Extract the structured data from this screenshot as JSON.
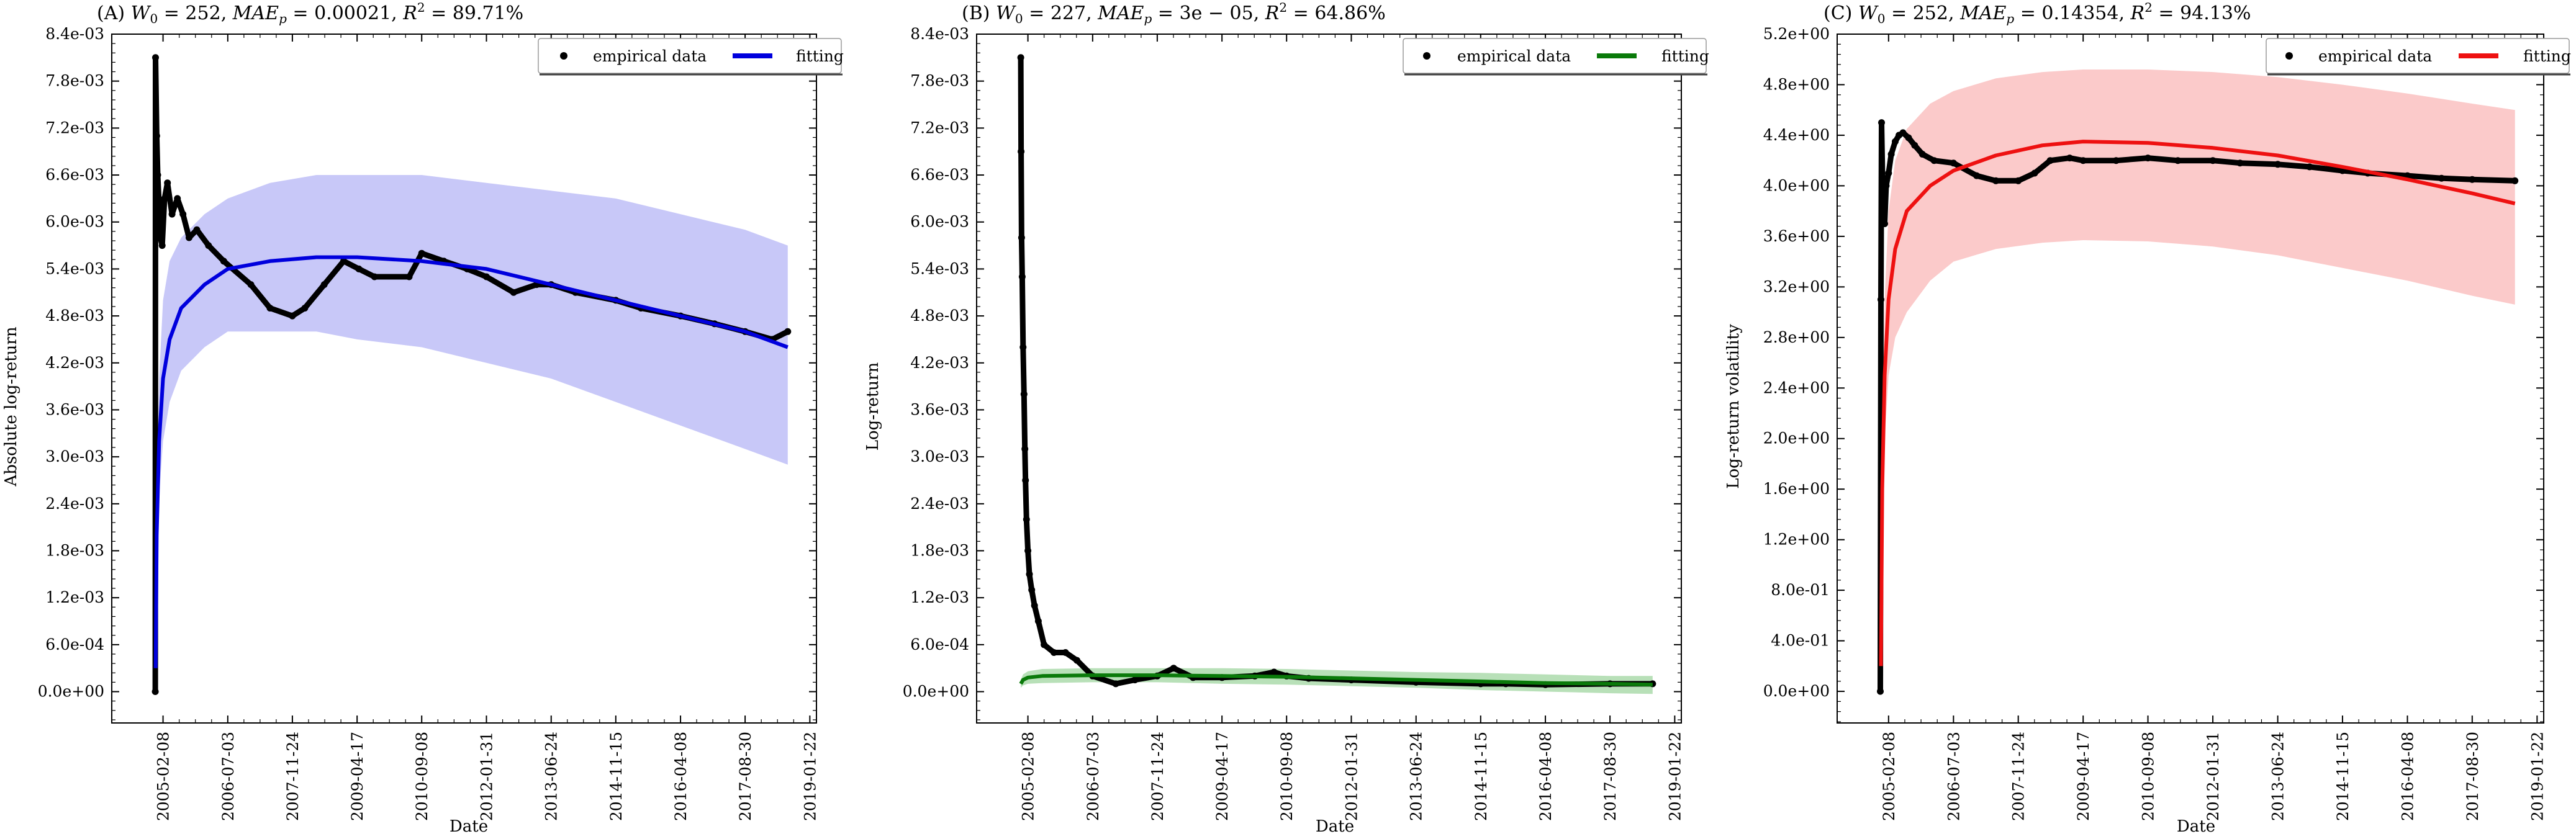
{
  "chart_data": [
    {
      "panel_label": "(A)",
      "title_parts": {
        "w0": "252",
        "mae": "0.00021",
        "r2": "89.71%"
      },
      "type": "scatter",
      "xlabel": "Date",
      "ylabel": "Absolute log-return",
      "x_tick_labels": [
        "2005-02-08",
        "2006-07-03",
        "2007-11-24",
        "2009-04-17",
        "2010-09-08",
        "2012-01-31",
        "2013-06-24",
        "2014-11-15",
        "2016-04-08",
        "2017-08-30",
        "2019-01-22"
      ],
      "xlim": [
        "2004-01-01",
        "2019-03-15"
      ],
      "ylim": [
        -0.0004,
        0.0084
      ],
      "y_ticks": [
        0,
        0.0006,
        0.0012,
        0.0018,
        0.0024,
        0.003,
        0.0036,
        0.0042,
        0.0048,
        0.0054,
        0.006,
        0.0066,
        0.0072,
        0.0078,
        0.0084
      ],
      "y_tick_labels": [
        "0.0e+00",
        "6.0e-04",
        "1.2e-03",
        "1.8e-03",
        "2.4e-03",
        "3.0e-03",
        "3.6e-03",
        "4.2e-03",
        "4.8e-03",
        "5.4e-03",
        "6.0e-03",
        "6.6e-03",
        "7.2e-03",
        "7.8e-03",
        "8.4e-03"
      ],
      "fit_color": "#0000dd",
      "band_color": "#c8c8f8",
      "legend": {
        "position": "top-right",
        "empirical_label": "empirical data",
        "fit_label": "fitting"
      },
      "empirical_series": {
        "x": [
          "2004-12-09",
          "2004-12-11",
          "2004-12-20",
          "2004-12-28",
          "2005-01-08",
          "2005-01-18",
          "2005-02-01",
          "2005-02-20",
          "2005-03-15",
          "2005-04-20",
          "2005-06-01",
          "2005-07-15",
          "2005-09-01",
          "2005-11-01",
          "2006-02-01",
          "2006-06-01",
          "2007-01-01",
          "2007-06-01",
          "2007-11-24",
          "2008-03-01",
          "2008-08-01",
          "2009-01-01",
          "2009-05-01",
          "2009-09-01",
          "2010-06-01",
          "2010-09-08",
          "2011-03-01",
          "2011-09-01",
          "2012-01-31",
          "2012-09-01",
          "2013-03-01",
          "2013-06-24",
          "2014-01-01",
          "2014-11-15",
          "2015-06-01",
          "2016-04-08",
          "2017-01-01",
          "2017-08-30",
          "2018-04-01",
          "2018-08-01"
        ],
        "y": [
          0.0,
          0.0081,
          0.0071,
          0.0066,
          0.0062,
          0.0058,
          0.0057,
          0.0063,
          0.0065,
          0.0061,
          0.0063,
          0.0061,
          0.0058,
          0.0059,
          0.0057,
          0.0055,
          0.0052,
          0.0049,
          0.0048,
          0.0049,
          0.0052,
          0.0055,
          0.0054,
          0.0053,
          0.0053,
          0.0056,
          0.0055,
          0.0054,
          0.0053,
          0.0051,
          0.0052,
          0.0052,
          0.0051,
          0.005,
          0.0049,
          0.0048,
          0.0047,
          0.0046,
          0.0045,
          0.0046
        ]
      },
      "fit_series": {
        "x": [
          "2004-12-12",
          "2004-12-20",
          "2005-01-08",
          "2005-02-08",
          "2005-04-01",
          "2005-07-01",
          "2006-01-01",
          "2006-07-03",
          "2007-06-01",
          "2008-06-01",
          "2009-04-17",
          "2010-09-08",
          "2012-01-31",
          "2013-06-24",
          "2014-11-15",
          "2016-04-08",
          "2017-08-30",
          "2018-08-01"
        ],
        "y": [
          0.0003,
          0.002,
          0.0032,
          0.004,
          0.0045,
          0.0049,
          0.0052,
          0.0054,
          0.0055,
          0.00555,
          0.00555,
          0.0055,
          0.0054,
          0.0052,
          0.005,
          0.0048,
          0.0046,
          0.0044
        ]
      },
      "band_upper": [
        0.0004,
        0.0026,
        0.004,
        0.005,
        0.0055,
        0.0058,
        0.0061,
        0.0063,
        0.0065,
        0.0066,
        0.0066,
        0.0066,
        0.0065,
        0.0064,
        0.0063,
        0.0061,
        0.0059,
        0.0057
      ],
      "band_lower": [
        0.0002,
        0.0016,
        0.0025,
        0.0032,
        0.0037,
        0.0041,
        0.0044,
        0.0046,
        0.0046,
        0.0046,
        0.0045,
        0.0044,
        0.0042,
        0.004,
        0.0037,
        0.0034,
        0.0031,
        0.0029
      ]
    },
    {
      "panel_label": "(B)",
      "title_parts": {
        "w0": "227",
        "mae": "3e − 05",
        "r2": "64.86%"
      },
      "type": "scatter",
      "xlabel": "Date",
      "ylabel": "Log-return",
      "x_tick_labels": [
        "2005-02-08",
        "2006-07-03",
        "2007-11-24",
        "2009-04-17",
        "2010-09-08",
        "2012-01-31",
        "2013-06-24",
        "2014-11-15",
        "2016-04-08",
        "2017-08-30",
        "2019-01-22"
      ],
      "xlim": [
        "2004-01-01",
        "2019-03-15"
      ],
      "ylim": [
        -0.0004,
        0.0084
      ],
      "y_ticks": [
        0,
        0.0006,
        0.0012,
        0.0018,
        0.0024,
        0.003,
        0.0036,
        0.0042,
        0.0048,
        0.0054,
        0.006,
        0.0066,
        0.0072,
        0.0078,
        0.0084
      ],
      "y_tick_labels": [
        "0.0e+00",
        "6.0e-04",
        "1.2e-03",
        "1.8e-03",
        "2.4e-03",
        "3.0e-03",
        "3.6e-03",
        "4.2e-03",
        "4.8e-03",
        "5.4e-03",
        "6.0e-03",
        "6.6e-03",
        "7.2e-03",
        "7.8e-03",
        "8.4e-03"
      ],
      "fit_color": "#0a7a0a",
      "band_color": "#b8e0b8",
      "legend": {
        "position": "top-right",
        "empirical_label": "empirical data",
        "fit_label": "fitting"
      },
      "empirical_series": {
        "x": [
          "2004-12-14",
          "2004-12-16",
          "2004-12-20",
          "2004-12-25",
          "2005-01-01",
          "2005-01-08",
          "2005-01-15",
          "2005-01-20",
          "2005-01-28",
          "2005-02-08",
          "2005-02-20",
          "2005-03-10",
          "2005-04-01",
          "2005-05-01",
          "2005-06-15",
          "2005-09-01",
          "2005-12-01",
          "2006-03-01",
          "2006-07-03",
          "2007-01-01",
          "2007-06-01",
          "2007-11-24",
          "2008-04-01",
          "2008-09-01",
          "2009-04-17",
          "2010-01-01",
          "2010-06-01",
          "2010-09-08",
          "2011-03-01",
          "2012-01-31",
          "2013-06-24",
          "2014-11-15",
          "2015-06-01",
          "2016-04-08",
          "2017-08-30",
          "2018-08-01"
        ],
        "y": [
          0.0081,
          0.0069,
          0.0058,
          0.0053,
          0.0044,
          0.0038,
          0.0031,
          0.0027,
          0.0022,
          0.0018,
          0.0015,
          0.0013,
          0.0011,
          0.0009,
          0.0006,
          0.0005,
          0.0005,
          0.0004,
          0.0002,
          0.0001,
          0.00015,
          0.0002,
          0.0003,
          0.00018,
          0.00018,
          0.0002,
          0.00025,
          0.0002,
          0.00017,
          0.00015,
          0.00012,
          0.0001,
          0.0001,
          9e-05,
          0.0001,
          0.0001
        ]
      },
      "fit_series": {
        "x": [
          "2004-12-14",
          "2005-01-01",
          "2005-02-08",
          "2005-06-01",
          "2006-07-03",
          "2007-11-24",
          "2009-04-17",
          "2010-09-08",
          "2012-01-31",
          "2013-06-24",
          "2014-11-15",
          "2016-04-08",
          "2017-08-30",
          "2018-08-01"
        ],
        "y": [
          0.0001,
          0.00015,
          0.00018,
          0.0002,
          0.00021,
          0.00021,
          0.0002,
          0.00019,
          0.00017,
          0.00015,
          0.00013,
          0.00011,
          0.0001,
          9e-05
        ]
      },
      "band_upper": [
        0.00015,
        0.00022,
        0.00026,
        0.00029,
        0.0003,
        0.0003,
        0.0003,
        0.00029,
        0.00027,
        0.00025,
        0.00024,
        0.00022,
        0.0002,
        0.0002
      ],
      "band_lower": [
        5e-05,
        8e-05,
        0.0001,
        0.00011,
        0.00012,
        0.00012,
        0.0001,
        9e-05,
        7e-05,
        5e-05,
        2e-05,
        0.0,
        -2e-05,
        -3e-05
      ]
    },
    {
      "panel_label": "(C)",
      "title_parts": {
        "w0": "252",
        "mae": "0.14354",
        "r2": "94.13%"
      },
      "type": "scatter",
      "xlabel": "Date",
      "ylabel": "Log-return volatility",
      "x_tick_labels": [
        "2005-02-08",
        "2006-07-03",
        "2007-11-24",
        "2009-04-17",
        "2010-09-08",
        "2012-01-31",
        "2013-06-24",
        "2014-11-15",
        "2016-04-08",
        "2017-08-30",
        "2019-01-22"
      ],
      "xlim": [
        "2004-01-01",
        "2019-03-15"
      ],
      "ylim": [
        -0.25,
        5.2
      ],
      "y_ticks": [
        0,
        0.4,
        0.8,
        1.2,
        1.6,
        2.0,
        2.4,
        2.8,
        3.2,
        3.6,
        4.0,
        4.4,
        4.8,
        5.2
      ],
      "y_tick_labels": [
        "0.0e+00",
        "4.0e-01",
        "8.0e-01",
        "1.2e+00",
        "1.6e+00",
        "2.0e+00",
        "2.4e+00",
        "2.8e+00",
        "3.2e+00",
        "3.6e+00",
        "4.0e+00",
        "4.4e+00",
        "4.8e+00",
        "5.2e+00"
      ],
      "fit_color": "#ee1111",
      "band_color": "#fbcaca",
      "legend": {
        "position": "top-right",
        "empirical_label": "empirical data",
        "fit_label": "fitting"
      },
      "empirical_series": {
        "x": [
          "2004-12-05",
          "2004-12-10",
          "2004-12-15",
          "2004-12-25",
          "2005-01-08",
          "2005-01-20",
          "2005-02-08",
          "2005-03-01",
          "2005-04-01",
          "2005-05-01",
          "2005-06-01",
          "2005-07-15",
          "2005-09-01",
          "2005-11-01",
          "2006-02-01",
          "2006-07-03",
          "2007-01-01",
          "2007-06-01",
          "2007-11-24",
          "2008-04-01",
          "2008-08-01",
          "2009-01-01",
          "2009-04-17",
          "2010-01-01",
          "2010-09-08",
          "2011-05-01",
          "2012-01-31",
          "2012-09-01",
          "2013-06-24",
          "2014-03-01",
          "2014-11-15",
          "2015-06-01",
          "2016-04-08",
          "2017-01-01",
          "2017-08-30",
          "2018-08-01"
        ],
        "y": [
          0.0,
          3.1,
          4.5,
          3.9,
          3.7,
          4.0,
          4.1,
          4.25,
          4.35,
          4.4,
          4.42,
          4.38,
          4.32,
          4.25,
          4.2,
          4.18,
          4.08,
          4.04,
          4.04,
          4.1,
          4.2,
          4.22,
          4.2,
          4.2,
          4.22,
          4.2,
          4.2,
          4.18,
          4.17,
          4.15,
          4.12,
          4.1,
          4.08,
          4.06,
          4.05,
          4.04
        ]
      },
      "fit_series": {
        "x": [
          "2004-12-10",
          "2004-12-20",
          "2005-01-08",
          "2005-02-08",
          "2005-04-01",
          "2005-07-01",
          "2006-01-01",
          "2006-07-03",
          "2007-06-01",
          "2008-06-01",
          "2009-04-17",
          "2010-09-08",
          "2012-01-31",
          "2013-06-24",
          "2014-11-15",
          "2016-04-08",
          "2017-08-30",
          "2018-08-01"
        ],
        "y": [
          0.2,
          1.6,
          2.5,
          3.1,
          3.5,
          3.8,
          4.0,
          4.12,
          4.24,
          4.32,
          4.35,
          4.34,
          4.3,
          4.24,
          4.15,
          4.05,
          3.94,
          3.86
        ]
      },
      "band_upper": [
        0.3,
        2.0,
        3.1,
        3.8,
        4.2,
        4.45,
        4.65,
        4.75,
        4.85,
        4.9,
        4.92,
        4.92,
        4.9,
        4.86,
        4.8,
        4.73,
        4.65,
        4.6
      ],
      "band_lower": [
        0.1,
        1.3,
        2.0,
        2.5,
        2.8,
        3.0,
        3.25,
        3.4,
        3.5,
        3.55,
        3.57,
        3.56,
        3.52,
        3.45,
        3.35,
        3.25,
        3.13,
        3.06
      ]
    }
  ]
}
